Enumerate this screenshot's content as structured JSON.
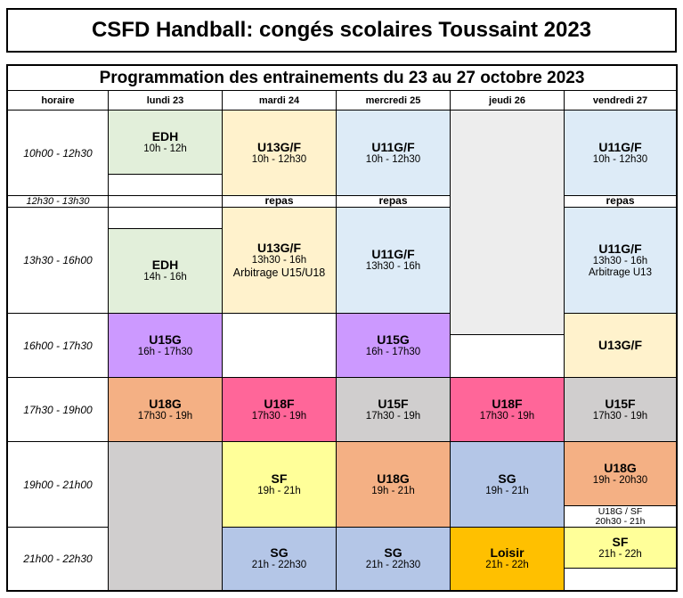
{
  "title": "CSFD Handball: congés scolaires Toussaint 2023",
  "subtitle": "Programmation des entrainements du 23 au 27 octobre 2023",
  "headers": {
    "horaire": "horaire",
    "lundi": "lundi 23",
    "mardi": "mardi 24",
    "mercredi": "mercredi 25",
    "jeudi": "jeudi 26",
    "vendredi": "vendredi 27"
  },
  "times": {
    "s1": "10h00 - 12h30",
    "s2": "12h30 - 13h30",
    "s3": "13h30 - 16h00",
    "s4": "16h00 - 17h30",
    "s5": "17h30 - 19h00",
    "s6": "19h00 - 21h00",
    "s7": "21h00 - 22h30"
  },
  "sessions": {
    "lun_edh1": {
      "team": "EDH",
      "hours": "10h - 12h"
    },
    "lun_edh2": {
      "team": "EDH",
      "hours": "14h - 16h"
    },
    "lun_u15g": {
      "team": "U15G",
      "hours": "16h - 17h30"
    },
    "lun_u18g": {
      "team": "U18G",
      "hours": "17h30 - 19h"
    },
    "mar_u13a": {
      "team": "U13G/F",
      "hours": "10h - 12h30"
    },
    "mar_repas": "repas",
    "mar_u13b": {
      "team": "U13G/F",
      "hours": "13h30 - 16h",
      "note": "Arbitrage U15/U18"
    },
    "mar_u18f": {
      "team": "U18F",
      "hours": "17h30 - 19h"
    },
    "mar_sf": {
      "team": "SF",
      "hours": "19h - 21h"
    },
    "mar_sg": {
      "team": "SG",
      "hours": "21h - 22h30"
    },
    "mer_u11a": {
      "team": "U11G/F",
      "hours": "10h - 12h30"
    },
    "mer_repas": "repas",
    "mer_u11b": {
      "team": "U11G/F",
      "hours": "13h30 - 16h"
    },
    "mer_u15g": {
      "team": "U15G",
      "hours": "16h - 17h30"
    },
    "mer_u15f": {
      "team": "U15F",
      "hours": "17h30 - 19h"
    },
    "mer_u18g": {
      "team": "U18G",
      "hours": "19h - 21h"
    },
    "mer_sg": {
      "team": "SG",
      "hours": "21h - 22h30"
    },
    "jeu_u18f": {
      "team": "U18F",
      "hours": "17h30 - 19h"
    },
    "jeu_sg": {
      "team": "SG",
      "hours": "19h - 21h"
    },
    "jeu_loisir": {
      "team": "Loisir",
      "hours": "21h - 22h"
    },
    "ven_u11a": {
      "team": "U11G/F",
      "hours": "10h - 12h30"
    },
    "ven_repas": "repas",
    "ven_u11b": {
      "team": "U11G/F",
      "hours": "13h30 - 16h",
      "note": "Arbitrage U13"
    },
    "ven_u13": {
      "team": "U13G/F"
    },
    "ven_u15f": {
      "team": "U15F",
      "hours": "17h30 - 19h"
    },
    "ven_u18g": {
      "team": "U18G",
      "hours": "19h - 20h30"
    },
    "ven_u18sf": "U18G / SF",
    "ven_u18sf_hours": "20h30 - 21h",
    "ven_sf": {
      "team": "SF",
      "hours": "21h - 22h"
    }
  },
  "colors": {
    "green": "#e2efda",
    "cream": "#fff2cc",
    "blue": "#ddebf7",
    "purple": "#cc99ff",
    "orange": "#f4b084",
    "pink": "#ff6699",
    "gray": "#d0cece",
    "lightgray": "#ededed",
    "yellow": "#ffff99",
    "steel": "#b4c6e7",
    "gold": "#ffc000"
  }
}
